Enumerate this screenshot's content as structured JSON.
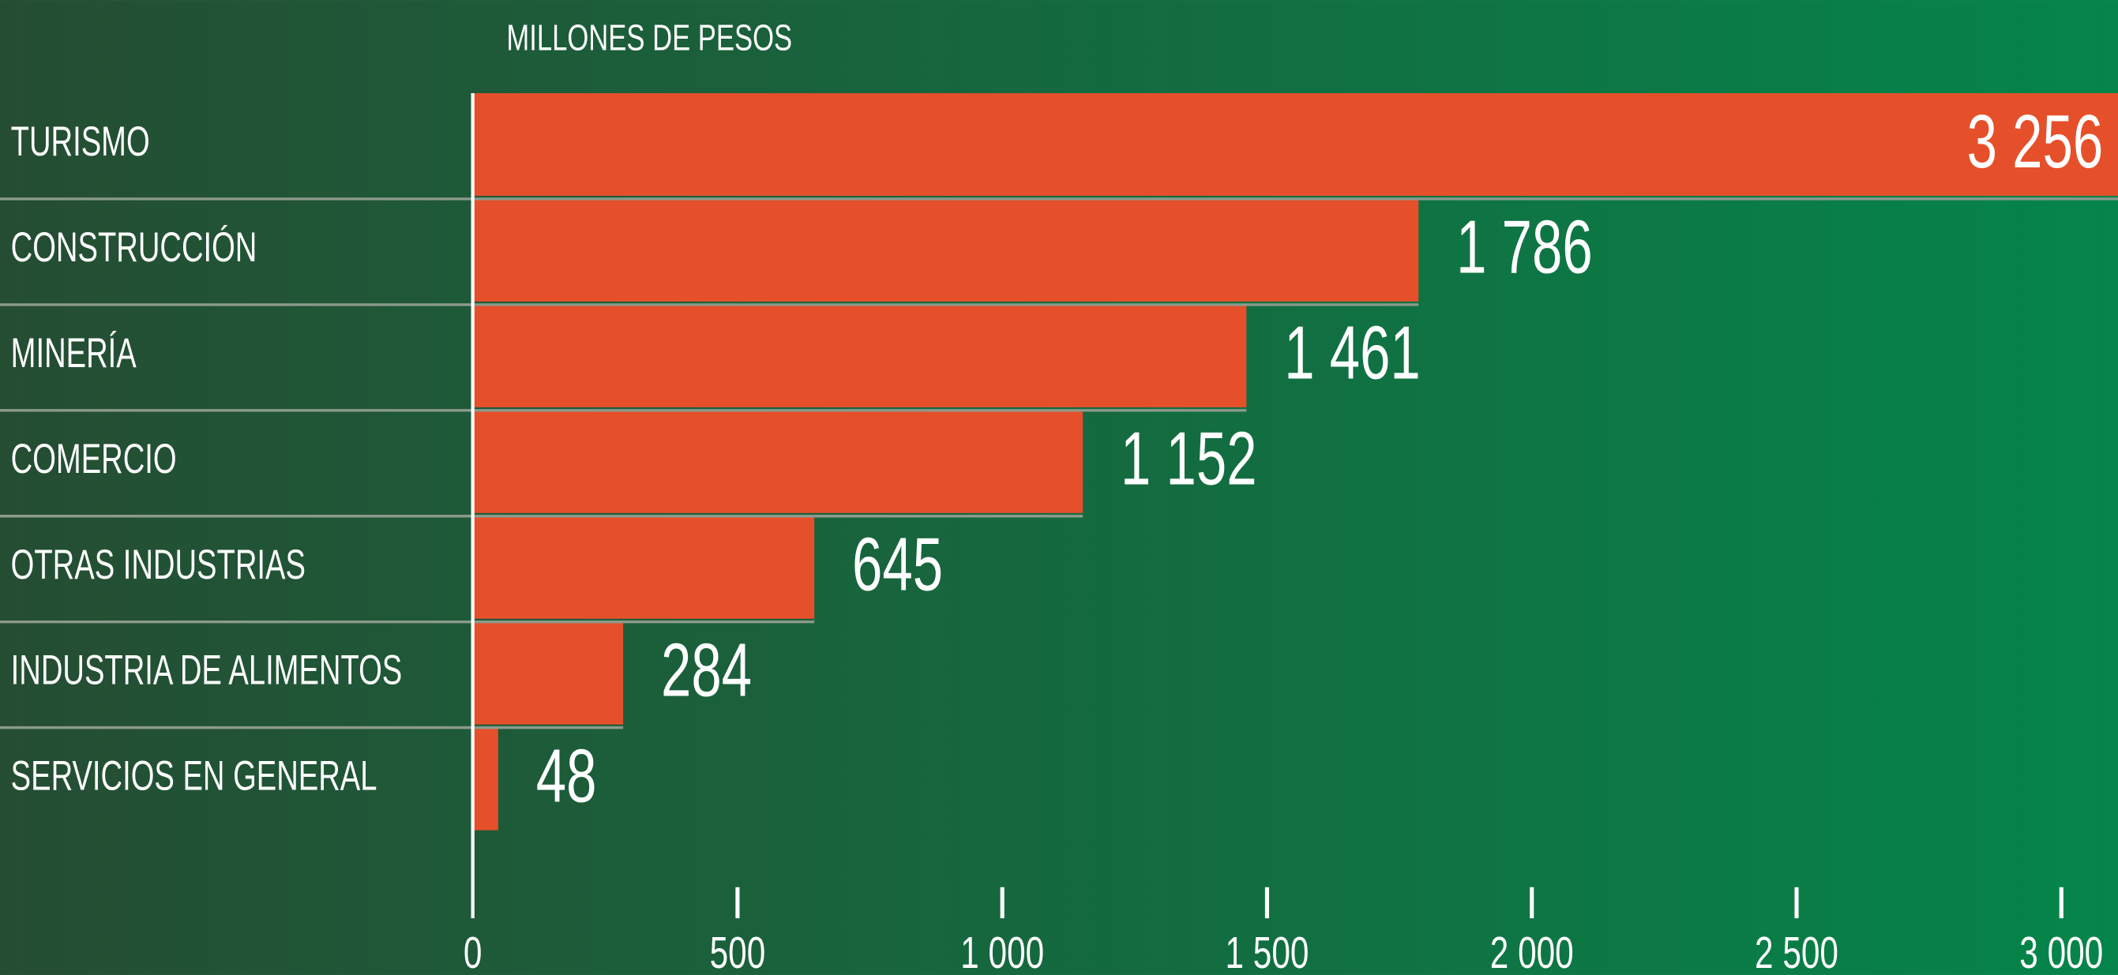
{
  "chart_data": {
    "type": "hbar",
    "subtitle": "MILLONES DE PESOS",
    "categories": [
      "TURISMO",
      "CONSTRUCCIÓN",
      "MINERÍA",
      "COMERCIO",
      "OTRAS INDUSTRIAS",
      "INDUSTRIA DE ALIMENTOS",
      "SERVICIOS EN GENERAL"
    ],
    "values": [
      3256,
      1786,
      1461,
      1152,
      645,
      284,
      48
    ],
    "value_labels": [
      "3 256",
      "1 786",
      "1 461",
      "1 152",
      "645",
      "284",
      "48"
    ],
    "color": "#e5502a",
    "xlim": [
      0,
      3107
    ],
    "xticks": [
      0,
      500,
      {
        "value": 1000,
        "label": "1 000"
      },
      {
        "value": 1500,
        "label": "1 500"
      },
      {
        "value": 2000,
        "label": "2 000"
      },
      {
        "value": 2500,
        "label": "2 500"
      },
      {
        "value": 3000,
        "label": "3 000"
      }
    ]
  }
}
